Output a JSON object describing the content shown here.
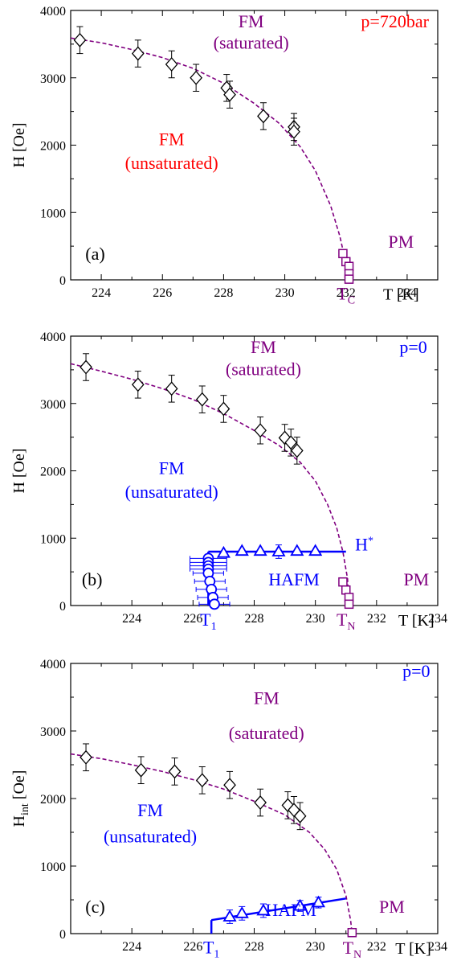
{
  "colors": {
    "axis": "#000000",
    "fm_boundary": "#800080",
    "hafm": "#0000ff",
    "unsat_a": "#ff0000",
    "pressure_a": "#ff0000",
    "black_points": "#000000"
  },
  "chart_data": [
    {
      "id": "a",
      "type": "scatter",
      "panel_label": "(a)",
      "xlabel": "T [K]",
      "ylabel": "H [Oe]",
      "xlim": [
        223,
        235
      ],
      "ylim": [
        0,
        4000
      ],
      "xticks": [
        224,
        226,
        228,
        230,
        232,
        234
      ],
      "yticks": [
        0,
        1000,
        2000,
        3000,
        4000
      ],
      "annotations": {
        "pressure": "p=720bar",
        "fm_sat_line1": "FM",
        "fm_sat_line2": "(saturated)",
        "fm_unsat_line1": "FM",
        "fm_unsat_line2": "(unsaturated)",
        "pm": "PM",
        "tc_main": "T",
        "tc_sub": "C"
      },
      "series": [
        {
          "marker": "diamond",
          "color": "#000000",
          "points": [
            {
              "x": 223.3,
              "y": 3560,
              "err": 200
            },
            {
              "x": 225.2,
              "y": 3360,
              "err": 200
            },
            {
              "x": 226.3,
              "y": 3200,
              "err": 200
            },
            {
              "x": 227.1,
              "y": 3000,
              "err": 200
            },
            {
              "x": 228.1,
              "y": 2850,
              "err": 200
            },
            {
              "x": 228.2,
              "y": 2750,
              "err": 200
            },
            {
              "x": 229.3,
              "y": 2430,
              "err": 200
            },
            {
              "x": 230.3,
              "y": 2270,
              "err": 200
            },
            {
              "x": 230.3,
              "y": 2200,
              "err": 200
            }
          ]
        },
        {
          "marker": "square",
          "color": "#800080",
          "points": [
            {
              "x": 231.9,
              "y": 390
            },
            {
              "x": 232.0,
              "y": 270
            },
            {
              "x": 232.1,
              "y": 200
            },
            {
              "x": 232.1,
              "y": 90
            },
            {
              "x": 232.1,
              "y": 10
            }
          ]
        }
      ],
      "boundary_curve": {
        "style": "dashed",
        "color": "#800080",
        "points": [
          [
            223.0,
            3590
          ],
          [
            224,
            3520
          ],
          [
            225,
            3420
          ],
          [
            226,
            3300
          ],
          [
            227,
            3140
          ],
          [
            228,
            2920
          ],
          [
            229,
            2620
          ],
          [
            229.8,
            2330
          ],
          [
            230.5,
            1980
          ],
          [
            231.0,
            1620
          ],
          [
            231.5,
            1100
          ],
          [
            231.8,
            650
          ],
          [
            232.0,
            240
          ],
          [
            232.05,
            0
          ]
        ]
      }
    },
    {
      "id": "b",
      "type": "scatter",
      "panel_label": "(b)",
      "xlabel": "T [K]",
      "ylabel": "H [Oe]",
      "xlim": [
        222,
        234
      ],
      "ylim": [
        0,
        4000
      ],
      "xticks": [
        224,
        226,
        228,
        230,
        232,
        234
      ],
      "yticks": [
        0,
        1000,
        2000,
        3000,
        4000
      ],
      "annotations": {
        "pressure": "p=0",
        "fm_sat_line1": "FM",
        "fm_sat_line2": "(saturated)",
        "fm_unsat_line1": "FM",
        "fm_unsat_line2": "(unsaturated)",
        "hafm": "HAFM",
        "pm": "PM",
        "hstar_main": "H",
        "hstar_sup": "*",
        "t1_main": "T",
        "t1_sub": "1",
        "tn_main": "T",
        "tn_sub": "N"
      },
      "series": [
        {
          "marker": "diamond",
          "color": "#000000",
          "points": [
            {
              "x": 222.5,
              "y": 3540,
              "err": 200
            },
            {
              "x": 224.2,
              "y": 3280,
              "err": 200
            },
            {
              "x": 225.3,
              "y": 3220,
              "err": 200
            },
            {
              "x": 226.3,
              "y": 3060,
              "err": 200
            },
            {
              "x": 227.0,
              "y": 2920,
              "err": 200
            },
            {
              "x": 228.2,
              "y": 2600,
              "err": 200
            },
            {
              "x": 229.0,
              "y": 2490,
              "err": 200
            },
            {
              "x": 229.2,
              "y": 2420,
              "err": 200
            },
            {
              "x": 229.4,
              "y": 2300,
              "err": 200
            }
          ]
        },
        {
          "marker": "triangle",
          "color": "#0000ff",
          "points": [
            {
              "x": 227.0,
              "y": 780
            },
            {
              "x": 227.6,
              "y": 810
            },
            {
              "x": 228.2,
              "y": 810
            },
            {
              "x": 228.8,
              "y": 800,
              "err": 100
            },
            {
              "x": 229.4,
              "y": 810
            },
            {
              "x": 230.0,
              "y": 810
            }
          ]
        },
        {
          "marker": "circle",
          "color": "#0000ff",
          "points": [
            {
              "x": 226.5,
              "y": 700,
              "xerr": 0.6
            },
            {
              "x": 226.5,
              "y": 640,
              "xerr": 0.6
            },
            {
              "x": 226.5,
              "y": 590,
              "xerr": 0.6
            },
            {
              "x": 226.5,
              "y": 540,
              "xerr": 0.6
            },
            {
              "x": 226.5,
              "y": 480,
              "xerr": 0.5
            },
            {
              "x": 226.55,
              "y": 360,
              "xerr": 0.5
            },
            {
              "x": 226.6,
              "y": 240,
              "xerr": 0.5
            },
            {
              "x": 226.65,
              "y": 120,
              "xerr": 0.5
            },
            {
              "x": 226.7,
              "y": 20,
              "xerr": 0.5
            }
          ]
        },
        {
          "marker": "square",
          "color": "#800080",
          "points": [
            {
              "x": 230.9,
              "y": 350
            },
            {
              "x": 231.0,
              "y": 230
            },
            {
              "x": 231.1,
              "y": 120
            },
            {
              "x": 231.1,
              "y": 20
            }
          ]
        }
      ],
      "boundary_curve": {
        "style": "dashed",
        "color": "#800080",
        "points": [
          [
            222.0,
            3590
          ],
          [
            223,
            3480
          ],
          [
            224,
            3360
          ],
          [
            225,
            3220
          ],
          [
            226,
            3060
          ],
          [
            227,
            2850
          ],
          [
            228,
            2600
          ],
          [
            228.8,
            2380
          ],
          [
            229.5,
            2130
          ],
          [
            230.0,
            1850
          ],
          [
            230.4,
            1500
          ],
          [
            230.7,
            1150
          ],
          [
            230.9,
            800
          ],
          [
            231.05,
            400
          ],
          [
            231.1,
            0
          ]
        ]
      },
      "hafm_line": {
        "color": "#0000ff",
        "points": [
          [
            226.5,
            800
          ],
          [
            231.0,
            800
          ]
        ]
      },
      "t1_line": {
        "color": "#0000ff",
        "points": [
          [
            226.5,
            0
          ],
          [
            226.5,
            800
          ]
        ]
      }
    },
    {
      "id": "c",
      "type": "scatter",
      "panel_label": "(c)",
      "xlabel": "T [K]",
      "ylabel": "H",
      "ylabel_sub": "int",
      "ylabel_unit": "[Oe]",
      "xlim": [
        222,
        234
      ],
      "ylim": [
        0,
        4000
      ],
      "xticks": [
        224,
        226,
        228,
        230,
        232,
        234
      ],
      "yticks": [
        0,
        1000,
        2000,
        3000,
        4000
      ],
      "annotations": {
        "pressure": "p=0",
        "fm_sat_line1": "FM",
        "fm_sat_line2": "(saturated)",
        "fm_unsat_line1": "FM",
        "fm_unsat_line2": "(unsaturated)",
        "hafm": "HAFM",
        "pm": "PM",
        "t1_main": "T",
        "t1_sub": "1",
        "tn_main": "T",
        "tn_sub": "N"
      },
      "series": [
        {
          "marker": "diamond",
          "color": "#000000",
          "points": [
            {
              "x": 222.5,
              "y": 2610,
              "err": 200
            },
            {
              "x": 224.3,
              "y": 2420,
              "err": 200
            },
            {
              "x": 225.4,
              "y": 2400,
              "err": 200
            },
            {
              "x": 226.3,
              "y": 2270,
              "err": 200
            },
            {
              "x": 227.2,
              "y": 2200,
              "err": 200
            },
            {
              "x": 228.2,
              "y": 1940,
              "err": 200
            },
            {
              "x": 229.1,
              "y": 1900,
              "err": 200
            },
            {
              "x": 229.3,
              "y": 1830,
              "err": 200
            },
            {
              "x": 229.5,
              "y": 1740,
              "err": 200
            }
          ]
        },
        {
          "marker": "triangle",
          "color": "#0000ff",
          "points": [
            {
              "x": 227.2,
              "y": 250,
              "err": 100
            },
            {
              "x": 227.6,
              "y": 300,
              "err": 100
            },
            {
              "x": 228.3,
              "y": 340,
              "err": 100
            },
            {
              "x": 229.5,
              "y": 410,
              "err": 80
            },
            {
              "x": 230.1,
              "y": 460,
              "err": 80
            }
          ]
        },
        {
          "marker": "square",
          "color": "#800080",
          "points": [
            {
              "x": 231.2,
              "y": 15
            }
          ]
        }
      ],
      "boundary_curve": {
        "style": "dashed",
        "color": "#800080",
        "points": [
          [
            222.0,
            2660
          ],
          [
            223,
            2590
          ],
          [
            224,
            2500
          ],
          [
            225,
            2400
          ],
          [
            226,
            2280
          ],
          [
            227,
            2140
          ],
          [
            228,
            1960
          ],
          [
            229,
            1760
          ],
          [
            229.8,
            1500
          ],
          [
            230.3,
            1250
          ],
          [
            230.7,
            950
          ],
          [
            231.0,
            560
          ],
          [
            231.15,
            200
          ],
          [
            231.2,
            0
          ]
        ]
      },
      "hafm_line": {
        "color": "#0000ff",
        "points": [
          [
            226.6,
            200
          ],
          [
            231.0,
            520
          ]
        ]
      },
      "t1_line": {
        "color": "#0000ff",
        "points": [
          [
            226.6,
            0
          ],
          [
            226.6,
            200
          ]
        ]
      }
    }
  ]
}
